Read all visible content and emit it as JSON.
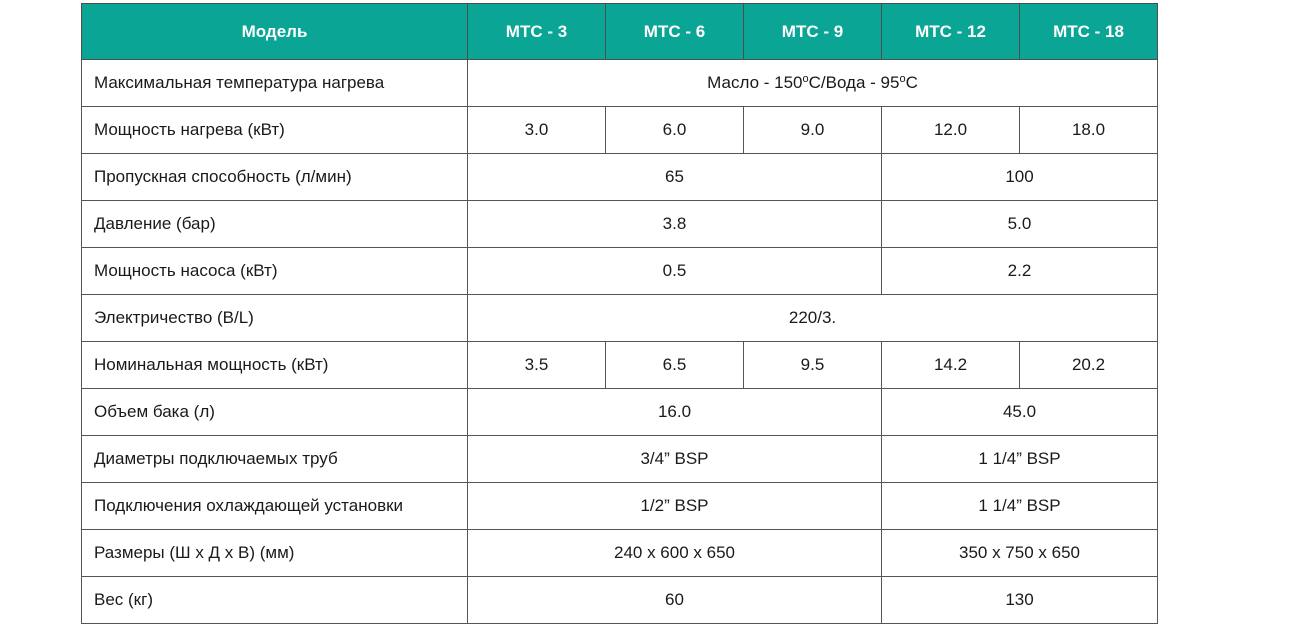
{
  "header": {
    "model_label": "Модель",
    "models": [
      "МТС - 3",
      "МТС - 6",
      "МТС - 9",
      "МТС - 12",
      "МТС - 18"
    ]
  },
  "rows": {
    "max_temp": {
      "label": "Максимальная температура нагрева",
      "oil": "Масло - 150",
      "deg": "o",
      "water_sep": "С/Вода - 95",
      "unit_end": "С"
    },
    "heating_power": {
      "label": "Мощность нагрева (кВт)",
      "values": [
        "3.0",
        "6.0",
        "9.0",
        "12.0",
        "18.0"
      ]
    },
    "throughput": {
      "label": "Пропускная способность (л/мин)",
      "values": [
        "65",
        "100"
      ]
    },
    "pressure": {
      "label": "Давление (бар)",
      "values": [
        "3.8",
        "5.0"
      ]
    },
    "pump_power": {
      "label": "Мощность насоса (кВт)",
      "values": [
        "0.5",
        "2.2"
      ]
    },
    "electricity": {
      "label": "Электричество (В/L)",
      "value": "220/3."
    },
    "nominal_power": {
      "label": "Номинальная мощность (кВт)",
      "values": [
        "3.5",
        "6.5",
        "9.5",
        "14.2",
        "20.2"
      ]
    },
    "tank_volume": {
      "label": "Объем бака (л)",
      "values": [
        "16.0",
        "45.0"
      ]
    },
    "pipe_diameters": {
      "label": "Диаметры подключаемых труб",
      "values": [
        "3/4” BSP",
        "1 1/4” BSP"
      ]
    },
    "cooling_connections": {
      "label": "Подключения охлаждающей установки",
      "values": [
        "1/2” BSP",
        "1 1/4” BSP"
      ]
    },
    "dimensions": {
      "label": "Размеры (Ш х Д х В)  (мм)",
      "values": [
        "240 х 600 х 650",
        "350 х 750 х 650"
      ]
    },
    "weight": {
      "label": "Вес (кг)",
      "values": [
        "60",
        "130"
      ]
    }
  },
  "colors": {
    "header_bg": "#0aa594",
    "header_text": "#ffffff",
    "border": "#555555"
  }
}
